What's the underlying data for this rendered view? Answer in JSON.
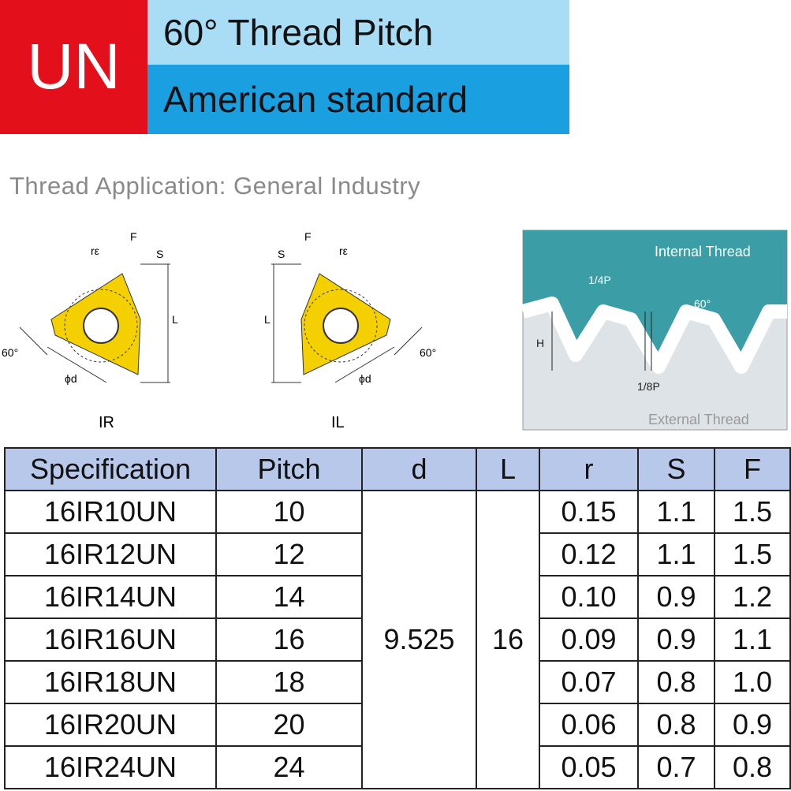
{
  "header": {
    "badge": "UN",
    "title": "60° Thread Pitch",
    "subtitle": "American standard"
  },
  "application": "Thread Application: General Industry",
  "diagrams": {
    "ir": {
      "caption": "IR",
      "f": "F",
      "r": "rε",
      "s": "S",
      "l": "L",
      "angle": "60°",
      "d": "ϕd"
    },
    "il": {
      "caption": "IL",
      "f": "F",
      "r": "rε",
      "s": "S",
      "l": "L",
      "angle": "60°",
      "d": "ϕd"
    },
    "thread": {
      "internal": "Internal Thread",
      "quarter": "1/4P",
      "angle": "60°",
      "h": "H",
      "eighth": "1/8P",
      "external": "External Thread"
    }
  },
  "table": {
    "headers": [
      "Specification",
      "Pitch",
      "d",
      "L",
      "r",
      "S",
      "F"
    ],
    "d": "9.525",
    "L": "16",
    "rows": [
      [
        "16IR10UN",
        "10",
        "0.15",
        "1.1",
        "1.5"
      ],
      [
        "16IR12UN",
        "12",
        "0.12",
        "1.1",
        "1.5"
      ],
      [
        "16IR14UN",
        "14",
        "0.10",
        "0.9",
        "1.2"
      ],
      [
        "16IR16UN",
        "16",
        "0.09",
        "0.9",
        "1.1"
      ],
      [
        "16IR18UN",
        "18",
        "0.07",
        "0.8",
        "1.0"
      ],
      [
        "16IR20UN",
        "20",
        "0.06",
        "0.8",
        "0.9"
      ],
      [
        "16IR24UN",
        "24",
        "0.05",
        "0.7",
        "0.8"
      ]
    ]
  }
}
